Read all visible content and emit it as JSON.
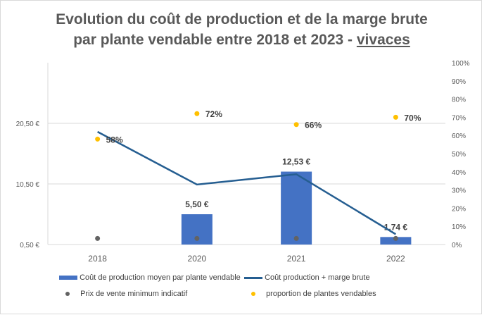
{
  "chart_data": {
    "type": "bar",
    "title_line1": "Evolution du coût de production et de la marge brute",
    "title_line2": "par plante vendable entre 2018 et 2023 - ",
    "title_emphasis": "vivaces",
    "categories": [
      "2018",
      "2020",
      "2021",
      "2022"
    ],
    "y_left": {
      "ticks": [
        "0,50 €",
        "10,50 €",
        "20,50 €"
      ],
      "tick_values": [
        0.5,
        10.5,
        20.5
      ],
      "range": [
        0.5,
        30.5
      ]
    },
    "y_right": {
      "ticks": [
        "0%",
        "10%",
        "20%",
        "30%",
        "40%",
        "50%",
        "60%",
        "70%",
        "80%",
        "90%",
        "100%"
      ],
      "range": [
        0,
        1
      ]
    },
    "grid": true,
    "legend_position": "bottom",
    "series": [
      {
        "name": "Coût de production moyen par plante vendable",
        "kind": "bar",
        "axis": "left",
        "color": "#4472C4",
        "values": [
          null,
          5.5,
          12.53,
          1.74
        ],
        "labels": [
          "",
          "5,50 €",
          "12,53 €",
          "1,74 €"
        ]
      },
      {
        "name": "Coût production + marge brute",
        "kind": "line",
        "axis": "left",
        "color": "#255E91",
        "values": [
          19.1,
          10.4,
          12.1,
          2.2
        ]
      },
      {
        "name": "Prix de vente minimum indicatif",
        "kind": "scatter",
        "axis": "left",
        "color": "#636363",
        "values": [
          1.5,
          1.5,
          1.5,
          1.5
        ]
      },
      {
        "name": "proportion de plantes vendables",
        "kind": "scatter",
        "axis": "right",
        "color": "#FFC000",
        "values": [
          0.58,
          0.72,
          0.66,
          0.7
        ],
        "labels": [
          "58%",
          "72%",
          "66%",
          "70%"
        ]
      }
    ]
  }
}
